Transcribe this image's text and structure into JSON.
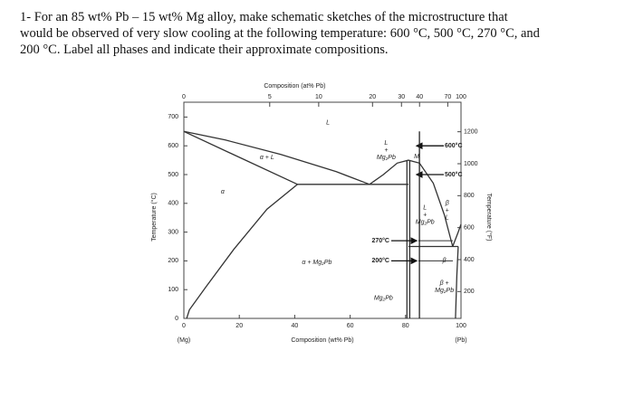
{
  "question": {
    "lines": [
      "1- For an 85 wt% Pb – 15 wt% Mg alloy, make schematic sketches of the microstructure that",
      "would be observed of very slow cooling at the following temperature: 600 °C, 500 °C, 270 °C, and",
      "200 °C. Label all phases and indicate their approximate compositions."
    ]
  },
  "diagram": {
    "top_axis_title": "Composition (at% Pb)",
    "top_ticks": [
      0,
      5,
      10,
      20,
      30,
      40,
      70,
      100
    ],
    "bottom_axis_title": "Composition (wt% Pb)",
    "bottom_ticks": [
      0,
      20,
      40,
      60,
      80,
      100
    ],
    "bottom_end_labels": [
      "(Mg)",
      "(Pb)"
    ],
    "left_axis_title": "Temperature (°C)",
    "left_ticks": [
      0,
      100,
      200,
      300,
      400,
      500,
      600,
      700
    ],
    "right_axis_title": "Temperature (°F)",
    "right_ticks": [
      1200,
      1000,
      800,
      600,
      400,
      200
    ],
    "regions": [
      {
        "lines": [
          "L"
        ]
      },
      {
        "lines": [
          "α + L"
        ]
      },
      {
        "lines": [
          "α"
        ]
      },
      {
        "lines": [
          "L",
          "+",
          "Mg₂Pb"
        ]
      },
      {
        "lines": [
          "M"
        ]
      },
      {
        "lines": [
          "α + Mg₂Pb"
        ]
      },
      {
        "lines": [
          "Mg₂Pb"
        ]
      },
      {
        "lines": [
          "L",
          "+",
          "Mg₂Pb"
        ]
      },
      {
        "lines": [
          "β",
          "+",
          "L"
        ]
      },
      {
        "lines": [
          "β"
        ]
      },
      {
        "lines": [
          "β +",
          "Mg₂Pb"
        ]
      }
    ],
    "temperature_marks": [
      "600°C",
      "500°C",
      "270°C",
      "200°C"
    ]
  }
}
